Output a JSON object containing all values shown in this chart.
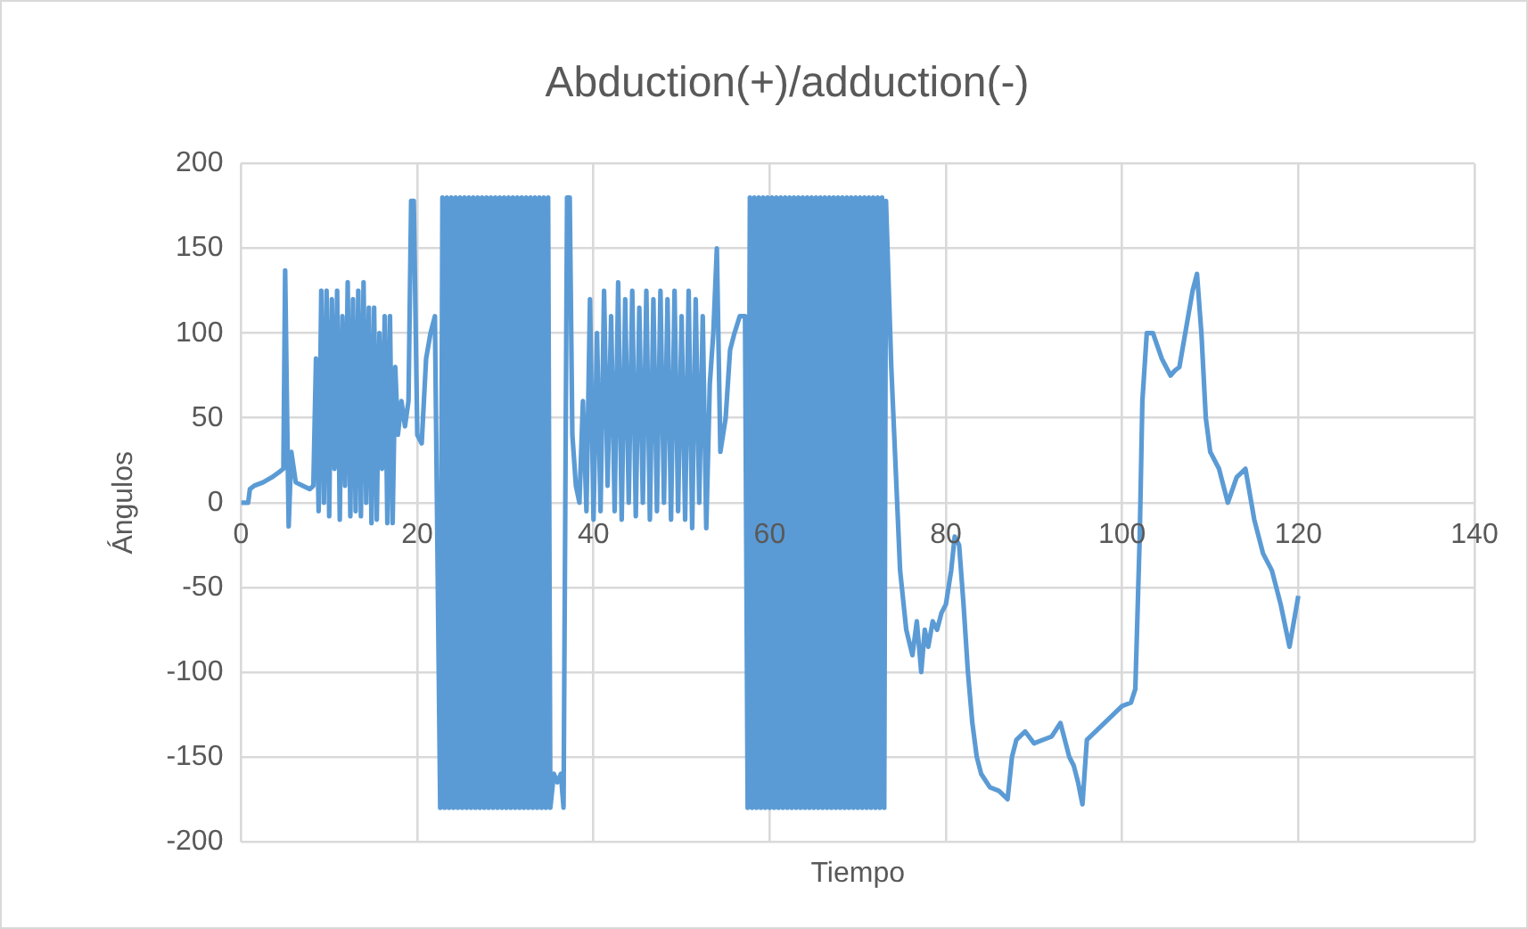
{
  "chart_data": {
    "type": "line",
    "title": "Abduction(+)/adduction(-)",
    "xlabel": "Tiempo",
    "ylabel": "Ángulos",
    "xlim": [
      0,
      140
    ],
    "xticks": [
      0,
      20,
      40,
      60,
      80,
      100,
      120,
      140
    ],
    "ylim": [
      -200,
      200
    ],
    "yticks": [
      -200,
      -150,
      -100,
      -50,
      0,
      50,
      100,
      150,
      200
    ],
    "grid": true,
    "marker": "none",
    "series": [
      {
        "color": "#5b9bd5",
        "x": [
          0,
          0.8,
          1,
          1.5,
          2.5,
          3.5,
          4.3,
          4.8,
          5,
          5.2,
          5.4,
          5.7,
          6.2,
          7,
          7.8,
          8.2,
          8.5,
          8.8,
          9.1,
          9.4,
          9.7,
          10,
          10.3,
          10.6,
          10.9,
          11.2,
          11.5,
          11.8,
          12.1,
          12.4,
          12.7,
          13,
          13.3,
          13.6,
          13.9,
          14.2,
          14.5,
          14.8,
          15.1,
          15.4,
          15.7,
          16,
          16.3,
          16.6,
          16.9,
          17.2,
          17.5,
          17.8,
          18.2,
          18.6,
          19,
          19.3,
          19.6,
          20,
          20.5,
          21,
          21.5,
          22,
          22.6,
          22.85,
          23.1,
          23.35,
          23.6,
          23.85,
          24.1,
          24.35,
          24.6,
          24.85,
          25.1,
          25.35,
          25.6,
          25.85,
          26.1,
          26.35,
          26.6,
          26.85,
          27.1,
          27.35,
          27.6,
          27.85,
          28.1,
          28.35,
          28.6,
          28.85,
          29.1,
          29.35,
          29.6,
          29.85,
          30.1,
          30.35,
          30.6,
          30.85,
          31.1,
          31.35,
          31.6,
          31.85,
          32.1,
          32.35,
          32.6,
          32.85,
          33.1,
          33.35,
          33.6,
          33.85,
          34.1,
          34.35,
          34.6,
          34.85,
          35.1,
          35.5,
          35.9,
          36.3,
          36.6,
          37,
          37.3,
          37.6,
          38,
          38.4,
          38.8,
          39.2,
          39.6,
          40,
          40.4,
          40.8,
          41.2,
          41.6,
          42,
          42.4,
          42.8,
          43.2,
          43.6,
          44,
          44.4,
          44.8,
          45.2,
          45.6,
          46,
          46.4,
          46.8,
          47.2,
          47.6,
          48,
          48.4,
          48.8,
          49.2,
          49.6,
          50,
          50.4,
          50.8,
          51.2,
          51.6,
          52,
          52.4,
          52.8,
          53.2,
          53.6,
          54,
          54.4,
          55,
          55.5,
          56,
          56.6,
          57.2,
          57.5,
          57.75,
          58,
          58.25,
          58.5,
          58.75,
          59,
          59.25,
          59.5,
          59.75,
          60,
          60.25,
          60.5,
          60.75,
          61,
          61.25,
          61.5,
          61.75,
          62,
          62.25,
          62.5,
          62.75,
          63,
          63.25,
          63.5,
          63.75,
          64,
          64.25,
          64.5,
          64.75,
          65,
          65.25,
          65.5,
          65.75,
          66,
          66.25,
          66.5,
          66.75,
          67,
          67.25,
          67.5,
          67.75,
          68,
          68.25,
          68.5,
          68.75,
          69,
          69.25,
          69.5,
          69.75,
          70,
          70.25,
          70.5,
          70.75,
          71,
          71.25,
          71.5,
          71.75,
          72,
          72.25,
          72.5,
          72.75,
          73,
          73.2,
          73.8,
          74.3,
          74.8,
          75.5,
          76.2,
          76.7,
          77.2,
          77.6,
          78,
          78.5,
          79,
          79.5,
          80,
          80.6,
          81,
          81.5,
          82,
          82.5,
          83,
          83.5,
          84,
          85,
          86,
          87,
          87.5,
          88,
          89,
          90,
          91,
          92,
          93,
          94,
          94.5,
          95,
          95.5,
          96,
          97,
          98,
          99,
          100,
          101,
          101.5,
          102,
          102.3,
          102.8,
          103.5,
          104.5,
          105.5,
          106,
          106.5,
          107.5,
          108,
          108.5,
          109,
          109.5,
          110,
          111,
          112,
          113,
          114,
          115,
          116,
          117,
          118,
          119,
          120
        ],
        "values": [
          0,
          0,
          8,
          10,
          12,
          15,
          18,
          20,
          137,
          60,
          -14,
          30,
          12,
          10,
          8,
          10,
          85,
          -5,
          125,
          0,
          125,
          -8,
          120,
          20,
          125,
          -10,
          110,
          10,
          130,
          -8,
          120,
          -5,
          125,
          -8,
          130,
          0,
          115,
          -12,
          115,
          -10,
          100,
          20,
          110,
          -12,
          110,
          -12,
          80,
          40,
          60,
          45,
          60,
          178,
          178,
          40,
          35,
          85,
          100,
          110,
          -180,
          180,
          -180,
          180,
          -180,
          180,
          -180,
          180,
          -180,
          180,
          -180,
          180,
          -180,
          180,
          -180,
          180,
          -180,
          180,
          -180,
          180,
          -180,
          180,
          -180,
          180,
          -180,
          180,
          -180,
          180,
          -180,
          180,
          -180,
          180,
          -180,
          180,
          -180,
          180,
          -180,
          180,
          -180,
          180,
          -180,
          180,
          -180,
          180,
          -180,
          180,
          -180,
          180,
          -180,
          180,
          -180,
          -160,
          -165,
          -160,
          -180,
          180,
          180,
          40,
          10,
          0,
          60,
          -5,
          120,
          -10,
          100,
          -5,
          125,
          10,
          110,
          -5,
          130,
          -10,
          120,
          0,
          125,
          -8,
          115,
          0,
          125,
          -10,
          120,
          -5,
          125,
          0,
          120,
          -10,
          125,
          -5,
          110,
          -10,
          125,
          -15,
          120,
          0,
          110,
          -15,
          70,
          100,
          150,
          30,
          50,
          90,
          100,
          110,
          110,
          -180,
          180,
          -180,
          180,
          -180,
          180,
          -180,
          180,
          -180,
          180,
          -180,
          180,
          -180,
          180,
          -180,
          180,
          -180,
          180,
          -180,
          180,
          -180,
          180,
          -180,
          180,
          -180,
          180,
          -180,
          180,
          -180,
          180,
          -180,
          180,
          -180,
          180,
          -180,
          180,
          -180,
          180,
          -180,
          180,
          -180,
          180,
          -180,
          180,
          -180,
          180,
          -180,
          180,
          -180,
          180,
          -180,
          180,
          -180,
          180,
          -180,
          180,
          -180,
          180,
          -180,
          180,
          -180,
          180,
          -180,
          178,
          80,
          20,
          -40,
          -75,
          -90,
          -70,
          -100,
          -75,
          -85,
          -70,
          -75,
          -65,
          -60,
          -40,
          -20,
          -25,
          -60,
          -100,
          -130,
          -150,
          -160,
          -168,
          -170,
          -175,
          -150,
          -140,
          -135,
          -142,
          -140,
          -138,
          -130,
          -150,
          -155,
          -165,
          -178,
          -140,
          -135,
          -130,
          -125,
          -120,
          -118,
          -110,
          -20,
          60,
          100,
          100,
          85,
          75,
          78,
          80,
          110,
          125,
          135,
          100,
          50,
          30,
          20,
          0,
          15,
          20,
          -10,
          -30,
          -40,
          -60,
          -85,
          -55
        ]
      }
    ]
  }
}
